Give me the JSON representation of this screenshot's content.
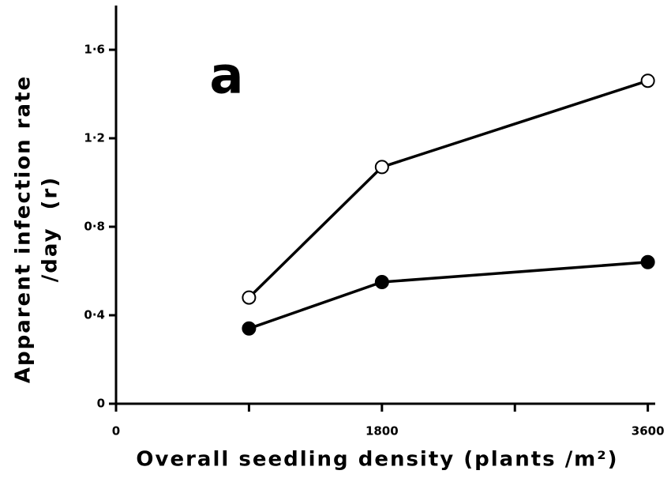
{
  "chart_data": {
    "type": "line",
    "xlabel": "Overall seedling density (plants /m²)",
    "ylabel": [
      "Apparent infection rate",
      "/day  (r)"
    ],
    "annotation": "a",
    "x": [
      900,
      1800,
      3600
    ],
    "series": [
      {
        "marker": "open",
        "color": "#000000",
        "values": [
          0.48,
          1.07,
          1.46
        ]
      },
      {
        "marker": "filled",
        "color": "#000000",
        "values": [
          0.34,
          0.55,
          0.64
        ]
      }
    ],
    "xlim": [
      0,
      3650
    ],
    "xticks": [
      0,
      1800,
      3600
    ],
    "xminor_ticks": [
      900,
      2700
    ],
    "ylim": [
      0,
      1.8
    ],
    "yticks": [
      0,
      {
        "value": 0.4,
        "label": "0·4"
      },
      {
        "value": 0.8,
        "label": "0·8"
      },
      {
        "value": 1.2,
        "label": "1·2"
      },
      {
        "value": 1.6,
        "label": "1·6"
      }
    ],
    "grid": false
  }
}
